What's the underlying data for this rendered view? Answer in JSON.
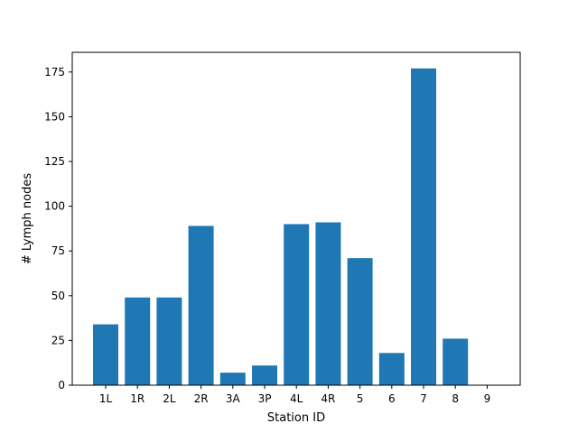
{
  "chart_data": {
    "type": "bar",
    "xlabel": "Station ID",
    "ylabel": "# Lymph nodes",
    "categories": [
      "1L",
      "1R",
      "2L",
      "2R",
      "3A",
      "3P",
      "4L",
      "4R",
      "5",
      "6",
      "7",
      "8",
      "9"
    ],
    "values": [
      34,
      49,
      49,
      89,
      7,
      11,
      90,
      91,
      71,
      18,
      177,
      26,
      0
    ],
    "ylim": [
      0,
      186
    ],
    "yticks": [
      0,
      25,
      50,
      75,
      100,
      125,
      150,
      175
    ],
    "grid": false,
    "bar_color": "#1f77b4"
  }
}
